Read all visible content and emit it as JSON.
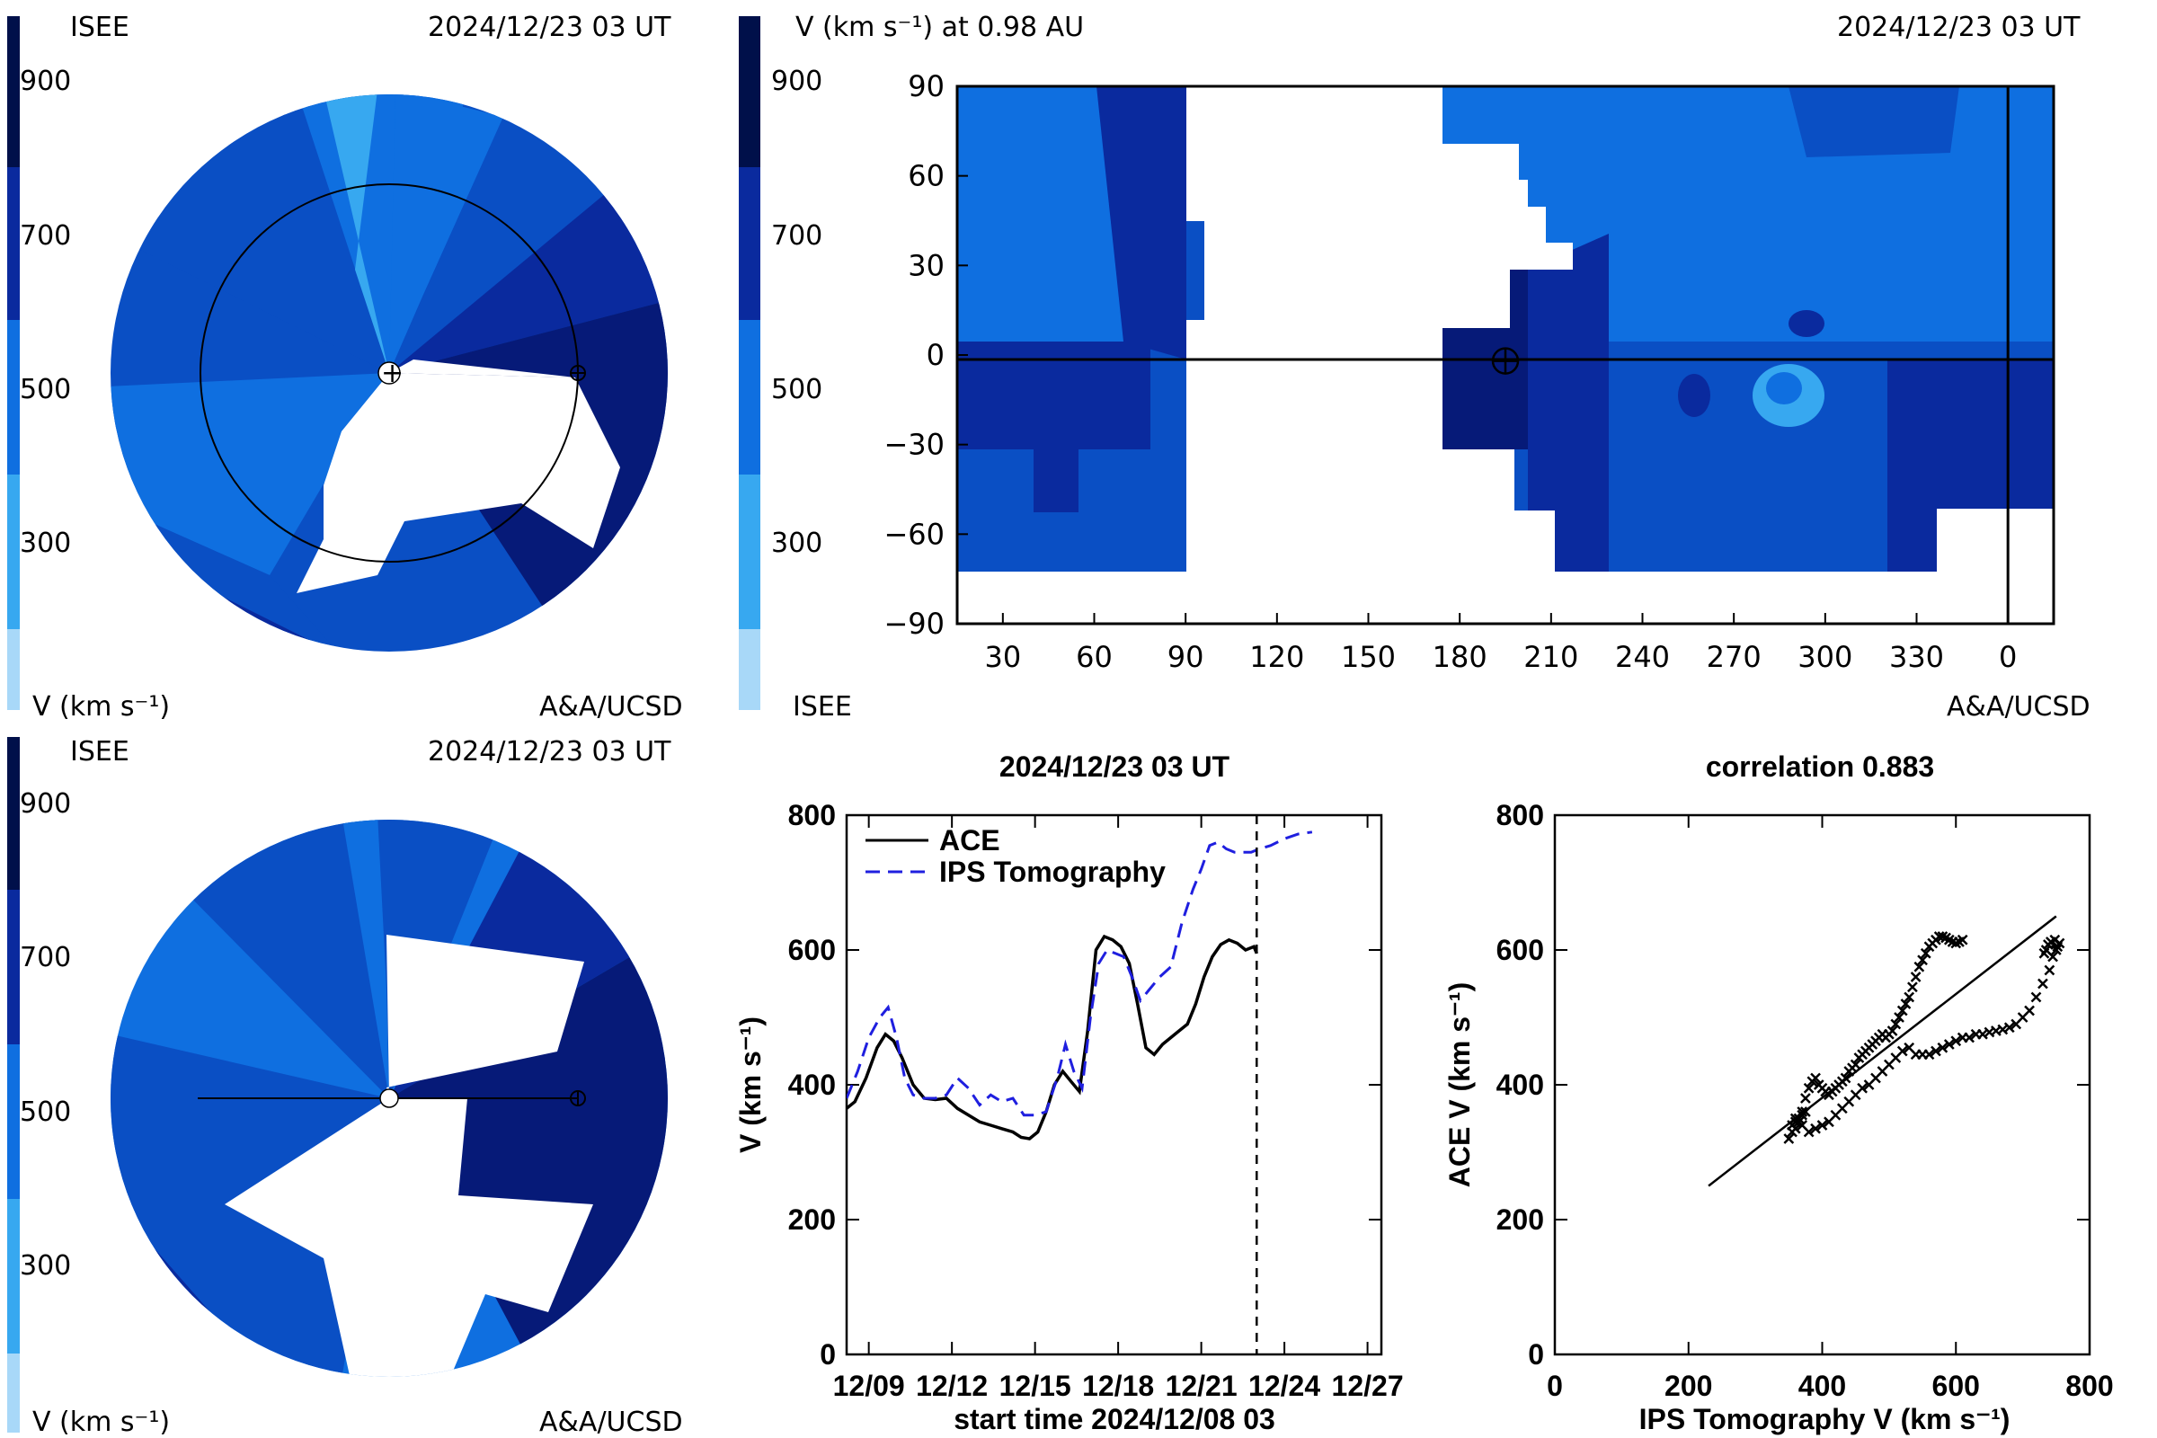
{
  "colors": {
    "v_300": "#a8d8f8",
    "v_400": "#37a8f0",
    "v_500": "#0f6fe0",
    "v_600": "#0a4fc4",
    "v_700": "#0a2a9e",
    "v_800": "#061a78",
    "v_900": "#00104a",
    "black": "#000000",
    "dash_blue": "#1f1fdf"
  },
  "colorbar": {
    "tick_labels": [
      "900",
      "700",
      "500",
      "300"
    ],
    "unit_label": "V (km s⁻¹)"
  },
  "panel_top_left": {
    "org_left": "ISEE",
    "timestamp": "2024/12/23 03 UT",
    "credit": "A&A/UCSD",
    "unit_label": "V (km s⁻¹)"
  },
  "panel_bottom_left": {
    "org_left": "ISEE",
    "timestamp": "2024/12/23 03 UT",
    "credit": "A&A/UCSD",
    "unit_label": "V (km s⁻¹)"
  },
  "panel_top_right": {
    "title": "V (km s⁻¹) at 0.98 AU",
    "timestamp": "2024/12/23 03 UT",
    "org": "ISEE",
    "credit": "A&A/UCSD",
    "colorbar_tick_labels": [
      "900",
      "700",
      "500",
      "300"
    ]
  },
  "chart_data": [
    {
      "type": "heatmap",
      "title": "V (km s⁻¹) at 0.98 AU",
      "x_ticks": [
        "30",
        "60",
        "90",
        "120",
        "150",
        "180",
        "210",
        "240",
        "270",
        "300",
        "330",
        "0"
      ],
      "y_ticks": [
        "90",
        "60",
        "30",
        "0",
        "−30",
        "−60",
        "−90"
      ],
      "xlim": [
        15,
        375
      ],
      "ylim": [
        -90,
        90
      ],
      "earth_marker": {
        "lon": 195,
        "lat": -2
      },
      "vertical_line_lon": 360
    },
    {
      "type": "line",
      "title": "2024/12/23 03 UT",
      "xlabel": "start time 2024/12/08 03",
      "ylabel": "V (km s⁻¹)",
      "x_tick_labels": [
        "12/09",
        "12/12",
        "12/15",
        "12/18",
        "12/21",
        "12/24",
        "12/27"
      ],
      "x_tick_days": [
        1,
        4,
        7,
        10,
        13,
        16,
        19
      ],
      "y_ticks": [
        0,
        200,
        400,
        600,
        800
      ],
      "xlim": [
        0.2,
        19.5
      ],
      "ylim": [
        0,
        800
      ],
      "now_day": 15,
      "series": [
        {
          "name": "ACE",
          "style": "solid",
          "x": [
            0.2,
            0.5,
            0.9,
            1.3,
            1.6,
            1.9,
            2.2,
            2.6,
            3.0,
            3.4,
            3.8,
            4.2,
            4.6,
            5.0,
            5.4,
            5.8,
            6.2,
            6.5,
            6.8,
            7.1,
            7.4,
            7.7,
            8.0,
            8.3,
            8.6,
            8.9,
            9.2,
            9.5,
            9.8,
            10.1,
            10.4,
            10.7,
            11.0,
            11.3,
            11.6,
            11.9,
            12.2,
            12.5,
            12.8,
            13.1,
            13.4,
            13.7,
            14.0,
            14.3,
            14.6,
            14.9,
            15.0
          ],
          "y": [
            365,
            375,
            410,
            455,
            475,
            465,
            440,
            400,
            380,
            378,
            380,
            365,
            355,
            345,
            340,
            335,
            330,
            322,
            320,
            330,
            360,
            400,
            420,
            405,
            390,
            480,
            600,
            620,
            615,
            605,
            580,
            520,
            455,
            445,
            460,
            470,
            480,
            490,
            520,
            560,
            590,
            608,
            615,
            610,
            600,
            605,
            595
          ]
        },
        {
          "name": "IPS Tomography",
          "style": "dashed",
          "x": [
            0.2,
            0.6,
            1.0,
            1.4,
            1.7,
            2.0,
            2.3,
            2.6,
            3.0,
            3.4,
            3.8,
            4.2,
            4.6,
            5.0,
            5.4,
            5.8,
            6.2,
            6.6,
            7.0,
            7.4,
            7.8,
            8.1,
            8.4,
            8.7,
            9.0,
            9.3,
            9.6,
            9.9,
            10.2,
            10.5,
            10.8,
            11.1,
            11.5,
            11.9,
            12.3,
            12.7,
            13.0,
            13.3,
            13.6,
            13.9,
            14.2,
            14.5,
            14.8,
            15.1,
            15.5,
            16.0,
            16.5,
            17.0
          ],
          "y": [
            380,
            420,
            470,
            500,
            515,
            470,
            410,
            385,
            380,
            380,
            385,
            410,
            395,
            370,
            385,
            375,
            380,
            355,
            355,
            360,
            410,
            460,
            420,
            395,
            500,
            580,
            600,
            595,
            590,
            560,
            525,
            540,
            560,
            575,
            640,
            690,
            720,
            755,
            760,
            750,
            745,
            745,
            745,
            750,
            755,
            765,
            772,
            775
          ]
        }
      ]
    },
    {
      "type": "scatter",
      "title": "correlation 0.883",
      "xlabel": "IPS Tomography V (km s⁻¹)",
      "ylabel": "ACE V (km s⁻¹)",
      "x_ticks": [
        0,
        200,
        400,
        600,
        800
      ],
      "y_ticks": [
        0,
        200,
        400,
        600,
        800
      ],
      "xlim": [
        0,
        800
      ],
      "ylim": [
        0,
        800
      ],
      "fit_line": {
        "x": [
          230,
          750
        ],
        "y": [
          250,
          650
        ]
      },
      "points_x": [
        350,
        355,
        360,
        365,
        370,
        375,
        380,
        385,
        390,
        395,
        400,
        405,
        410,
        415,
        420,
        425,
        430,
        435,
        440,
        445,
        450,
        455,
        460,
        465,
        470,
        475,
        480,
        485,
        490,
        495,
        500,
        505,
        510,
        515,
        520,
        525,
        530,
        535,
        540,
        545,
        550,
        555,
        560,
        565,
        570,
        575,
        580,
        585,
        590,
        595,
        600,
        605,
        610,
        360,
        370,
        380,
        390,
        400,
        410,
        420,
        430,
        440,
        450,
        460,
        470,
        480,
        490,
        500,
        510,
        520,
        530,
        540,
        550,
        560,
        570,
        580,
        590,
        600,
        610,
        620,
        630,
        640,
        650,
        660,
        670,
        680,
        690,
        700,
        710,
        720,
        730,
        740,
        745,
        750,
        752,
        755,
        748,
        742,
        738,
        735,
        732,
        355,
        360,
        365,
        370,
        375
      ],
      "points_y": [
        320,
        330,
        335,
        345,
        360,
        380,
        395,
        405,
        410,
        400,
        395,
        390,
        385,
        390,
        395,
        400,
        405,
        410,
        420,
        425,
        430,
        440,
        445,
        450,
        455,
        460,
        465,
        470,
        475,
        470,
        475,
        480,
        490,
        500,
        510,
        520,
        530,
        545,
        560,
        575,
        585,
        595,
        605,
        610,
        615,
        620,
        620,
        618,
        615,
        612,
        610,
        612,
        615,
        350,
        340,
        330,
        335,
        340,
        345,
        355,
        365,
        375,
        385,
        395,
        400,
        410,
        420,
        430,
        440,
        450,
        455,
        445,
        445,
        445,
        450,
        455,
        460,
        465,
        470,
        470,
        475,
        475,
        478,
        480,
        482,
        485,
        490,
        500,
        510,
        530,
        550,
        570,
        590,
        600,
        605,
        610,
        615,
        612,
        608,
        600,
        595,
        340,
        345,
        350,
        355,
        360
      ]
    }
  ]
}
